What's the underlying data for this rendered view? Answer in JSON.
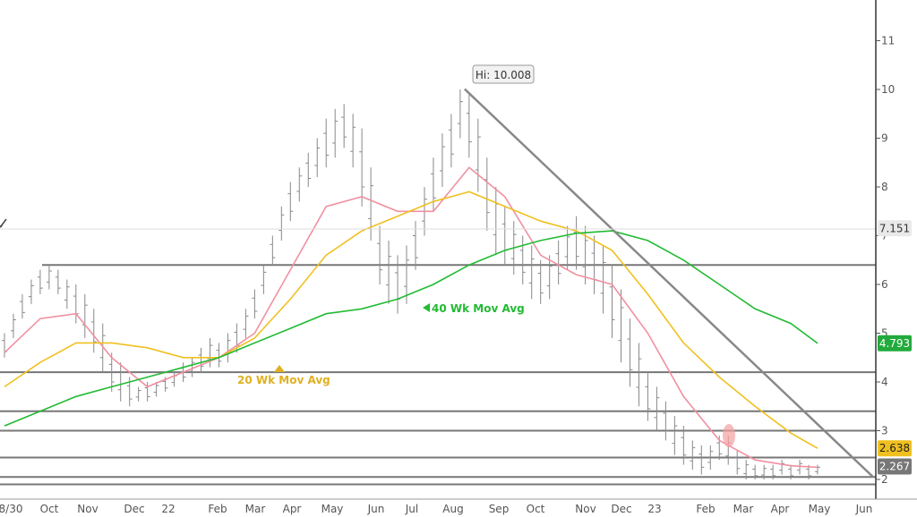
{
  "chart_data": {
    "type": "line",
    "title": "",
    "xlabel": "",
    "ylabel": "",
    "ylim": [
      1.85,
      11.6
    ],
    "grid": false,
    "x_tick_labels": [
      "8/30",
      "Oct",
      "Nov",
      "Dec",
      "22",
      "Feb",
      "Mar",
      "Apr",
      "May",
      "Jun",
      "Jul",
      "Aug",
      "Sep",
      "Oct",
      "Nov",
      "Dec",
      "23",
      "Feb",
      "Mar",
      "Apr",
      "May",
      "Jun"
    ],
    "y_tick_labels": [
      "2",
      "3",
      "4",
      "5",
      "6",
      "7",
      "8",
      "9",
      "10",
      "11"
    ],
    "price_tags": [
      {
        "label": "7.151",
        "value": 7.151,
        "bg": "#e9e9e9",
        "fg": "#333333"
      },
      {
        "label": "4.793",
        "value": 4.793,
        "bg": "#22aa3c",
        "fg": "#ffffff"
      },
      {
        "label": "2.638",
        "value": 2.638,
        "bg": "#f0c020",
        "fg": "#222222"
      },
      {
        "label": "2.267",
        "value": 2.267,
        "bg": "#777777",
        "fg": "#ffffff"
      }
    ],
    "high_label": "Hi: 10.008",
    "high_value": 10.008,
    "annotations": [
      {
        "text": "40 Wk Mov Avg",
        "color": "#22bb33"
      },
      {
        "text": "20 Wk Mov Avg",
        "color": "#e0b020"
      }
    ],
    "horizontal_levels": [
      6.4,
      4.2,
      3.4,
      3.0,
      2.45,
      2.05,
      1.9
    ],
    "trendline": [
      [
        10.0,
        10.0
      ],
      [
        10.0,
        2.05
      ]
    ],
    "series": [
      {
        "kind": "ohlc",
        "color": "#888888",
        "weeks": [
          0,
          1,
          2,
          3,
          4,
          5,
          6,
          7,
          8,
          9,
          10,
          11,
          12,
          13,
          14,
          15,
          16,
          17,
          18,
          19,
          20,
          21,
          22,
          23,
          24,
          25,
          26,
          27,
          28,
          29,
          30,
          31,
          32,
          33,
          34,
          35,
          36,
          37,
          38,
          39,
          40,
          41,
          42,
          43,
          44,
          45,
          46,
          47,
          48,
          49,
          50,
          51,
          52,
          53,
          54,
          55,
          56,
          57,
          58,
          59,
          60,
          61,
          62,
          63,
          64,
          65,
          66,
          67,
          68,
          69,
          70,
          71,
          72,
          73,
          74,
          75,
          76,
          77,
          78,
          79,
          80,
          81,
          82,
          83,
          84,
          85,
          86,
          87,
          88,
          89,
          90,
          91
        ],
        "high": [
          5.0,
          5.4,
          5.8,
          6.1,
          6.3,
          6.4,
          6.3,
          6.1,
          6.0,
          5.8,
          5.5,
          5.2,
          4.6,
          4.4,
          4.1,
          3.9,
          4.0,
          4.0,
          4.1,
          4.2,
          4.4,
          4.5,
          4.7,
          4.9,
          4.8,
          5.0,
          5.2,
          5.5,
          5.9,
          6.4,
          7.0,
          7.6,
          8.1,
          8.4,
          8.7,
          9.0,
          9.4,
          9.6,
          9.7,
          9.5,
          9.2,
          8.4,
          7.2,
          6.9,
          6.6,
          6.8,
          7.3,
          8.0,
          8.6,
          9.1,
          9.5,
          10.0,
          9.9,
          9.4,
          8.6,
          8.0,
          7.6,
          7.3,
          7.0,
          6.8,
          6.5,
          6.6,
          6.9,
          7.2,
          7.4,
          7.2,
          7.0,
          6.8,
          6.4,
          5.9,
          5.3,
          4.8,
          4.2,
          3.9,
          3.6,
          3.3,
          3.1,
          2.8,
          2.7,
          2.7,
          2.9,
          2.9,
          2.6,
          2.4,
          2.3,
          2.3,
          2.3,
          2.4,
          2.3,
          2.4,
          2.3,
          2.3
        ],
        "low": [
          4.5,
          4.9,
          5.3,
          5.6,
          5.8,
          5.9,
          5.8,
          5.5,
          5.2,
          4.9,
          4.6,
          4.2,
          3.8,
          3.6,
          3.5,
          3.6,
          3.6,
          3.7,
          3.8,
          3.9,
          4.0,
          4.1,
          4.2,
          4.3,
          4.3,
          4.4,
          4.6,
          4.9,
          5.3,
          5.8,
          6.4,
          6.9,
          7.3,
          7.7,
          8.0,
          8.2,
          8.4,
          8.6,
          8.8,
          8.4,
          7.6,
          6.9,
          6.0,
          5.6,
          5.4,
          5.6,
          6.3,
          7.0,
          7.5,
          8.0,
          8.4,
          9.0,
          8.6,
          7.9,
          7.1,
          6.6,
          6.4,
          6.2,
          6.0,
          5.7,
          5.6,
          5.7,
          6.0,
          6.3,
          6.3,
          6.0,
          5.8,
          5.4,
          4.9,
          4.4,
          3.9,
          3.5,
          3.2,
          3.0,
          2.8,
          2.5,
          2.3,
          2.2,
          2.1,
          2.2,
          2.4,
          2.3,
          2.1,
          2.0,
          2.0,
          2.0,
          2.0,
          2.1,
          2.0,
          2.1,
          2.0,
          2.1
        ]
      },
      {
        "kind": "line",
        "color": "#f090a0",
        "weeks": [
          0,
          4,
          8,
          12,
          16,
          20,
          24,
          28,
          32,
          36,
          40,
          44,
          48,
          52,
          56,
          60,
          64,
          68,
          72,
          76,
          80,
          84,
          88,
          91
        ],
        "values": [
          4.6,
          5.3,
          5.4,
          4.5,
          3.9,
          4.2,
          4.5,
          5.0,
          6.3,
          7.6,
          7.8,
          7.5,
          7.5,
          8.4,
          7.8,
          6.6,
          6.2,
          6.0,
          5.0,
          3.7,
          2.8,
          2.4,
          2.28,
          2.25
        ]
      },
      {
        "kind": "line",
        "color": "#f0c020",
        "weeks": [
          0,
          4,
          8,
          12,
          16,
          20,
          24,
          28,
          32,
          36,
          40,
          44,
          48,
          52,
          56,
          60,
          64,
          68,
          72,
          76,
          80,
          84,
          88,
          91
        ],
        "values": [
          3.9,
          4.4,
          4.8,
          4.8,
          4.7,
          4.5,
          4.5,
          4.9,
          5.7,
          6.6,
          7.1,
          7.4,
          7.7,
          7.9,
          7.6,
          7.3,
          7.1,
          6.7,
          5.8,
          4.8,
          4.1,
          3.5,
          2.95,
          2.638
        ]
      },
      {
        "kind": "line",
        "color": "#22bb33",
        "weeks": [
          0,
          4,
          8,
          12,
          16,
          20,
          24,
          28,
          32,
          36,
          40,
          44,
          48,
          52,
          56,
          60,
          64,
          68,
          72,
          76,
          80,
          84,
          88,
          91
        ],
        "values": [
          3.1,
          3.4,
          3.7,
          3.9,
          4.1,
          4.3,
          4.5,
          4.8,
          5.1,
          5.4,
          5.5,
          5.7,
          6.0,
          6.4,
          6.7,
          6.9,
          7.05,
          7.1,
          6.9,
          6.5,
          6.0,
          5.5,
          5.2,
          4.793
        ]
      }
    ]
  }
}
